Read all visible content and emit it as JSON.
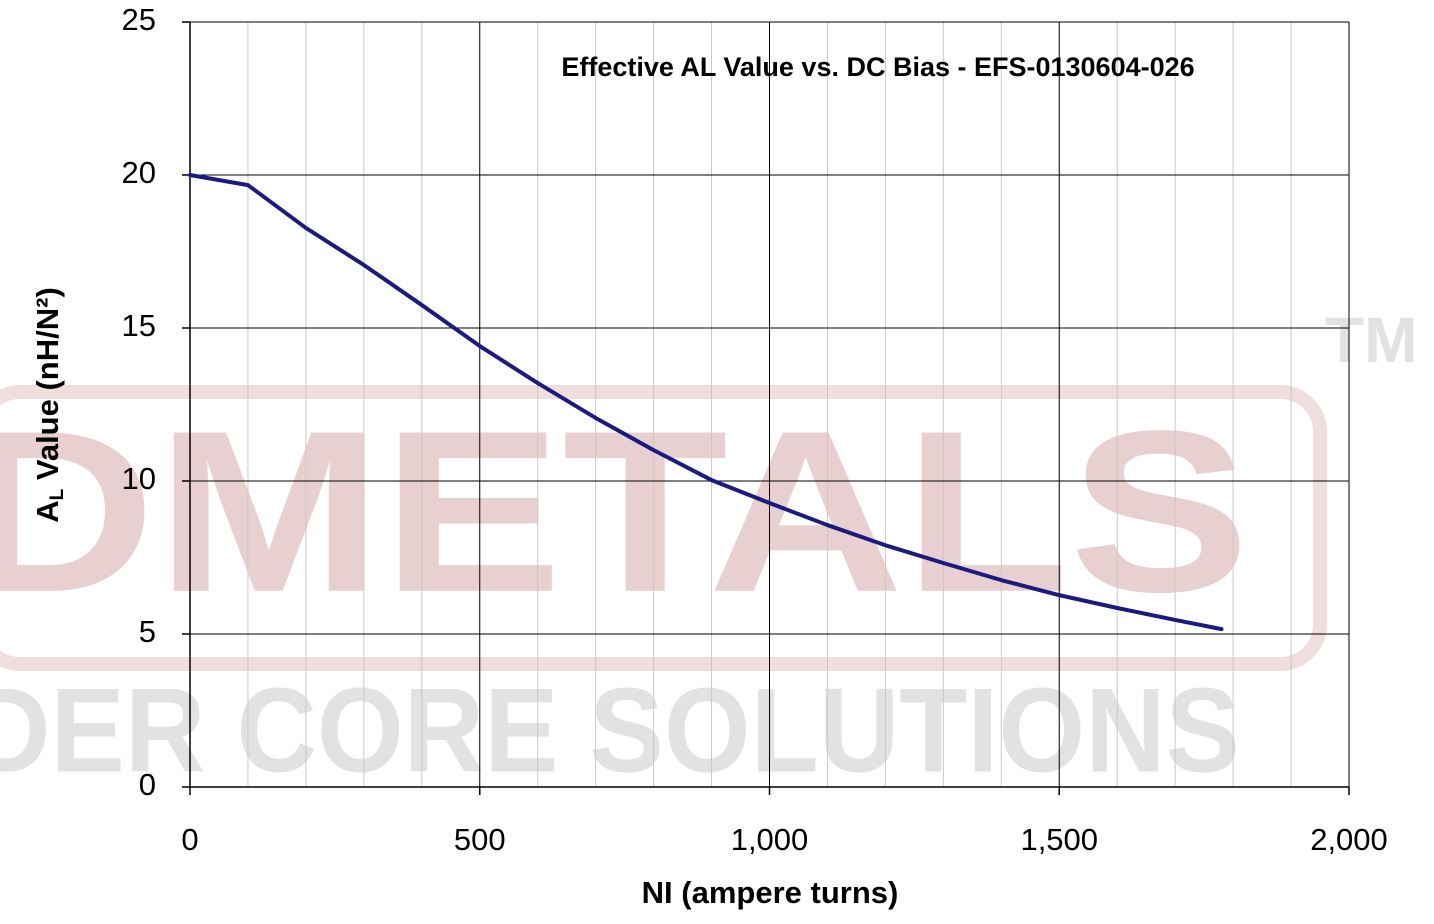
{
  "chart_data": {
    "type": "line",
    "title": "Effective AL Value vs. DC Bias - EFS-0130604-026",
    "x_label": "NI (ampere turns)",
    "y_label_main": "A",
    "y_label_sub": "L",
    "y_label_rest": " Value (nH/N²)",
    "watermark_text": "DMETALS",
    "watermark_subtext": "DER CORE SOLUTIONS",
    "watermark_mark": "TM",
    "x": [
      0,
      100,
      200,
      300,
      400,
      500,
      600,
      700,
      800,
      900,
      1000,
      1100,
      1200,
      1300,
      1400,
      1500,
      1600,
      1700,
      1780
    ],
    "series": [
      {
        "name": "AL",
        "color": "#1a1a80",
        "values": [
          20,
          19.67,
          18.27,
          17.06,
          15.75,
          14.41,
          13.2,
          12.06,
          11.01,
          10.03,
          9.28,
          8.56,
          7.9,
          7.32,
          6.76,
          6.27,
          5.85,
          5.46,
          5.16
        ]
      }
    ],
    "xlim": [
      0,
      2000
    ],
    "xticks": [
      0,
      500,
      {
        "value": 1000,
        "label": "1,000"
      },
      {
        "value": 1500,
        "label": "1,500"
      },
      {
        "value": 2000,
        "label": "2,000"
      }
    ],
    "ylim": [
      0,
      25
    ],
    "yticks": [
      0,
      5,
      10,
      15,
      20,
      25
    ],
    "grid": true,
    "minor_grid": true
  }
}
